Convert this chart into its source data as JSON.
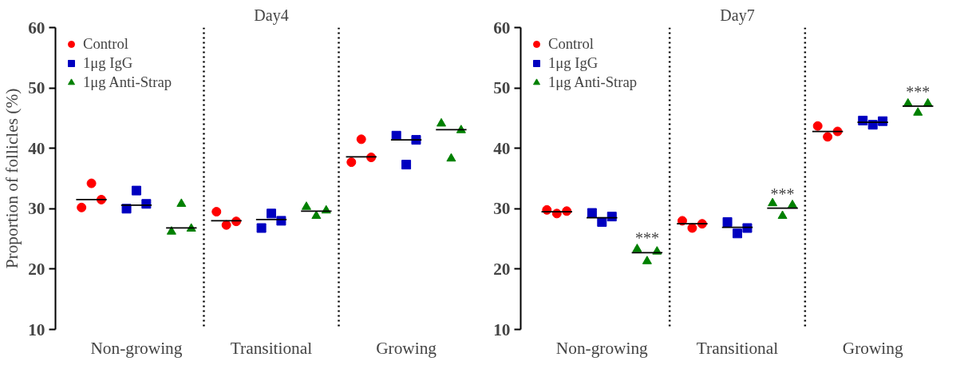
{
  "chart_data": [
    {
      "type": "scatter",
      "title": "Day4",
      "ylabel": "Proportion of follicles (%)",
      "ylim": [
        10,
        60
      ],
      "yticks": [
        10,
        20,
        30,
        40,
        50,
        60
      ],
      "categories": [
        null,
        "Non-growing",
        null,
        null,
        "Transitional",
        null,
        null,
        "Growing",
        null
      ],
      "grid": false,
      "legend": "top left",
      "series": [
        {
          "name": "Control",
          "color": "#ff0000",
          "marker": "circle",
          "values": [
            30.2,
            null,
            null,
            29.5,
            null,
            null,
            37.7,
            null,
            null
          ]
        },
        {
          "color": "#ff0000",
          "marker": "circle",
          "values": [
            34.2,
            null,
            null,
            27.3,
            null,
            null,
            41.5,
            null,
            null
          ]
        },
        {
          "color": "#ff0000",
          "marker": "circle",
          "values": [
            31.5,
            null,
            null,
            27.9,
            null,
            null,
            38.5,
            null,
            null
          ]
        },
        {
          "name": "1μg IgG",
          "color": "#0000c0",
          "marker": "square",
          "values": [
            null,
            30.0,
            null,
            null,
            26.8,
            null,
            null,
            42.1,
            null
          ]
        },
        {
          "color": "#0000c0",
          "marker": "square",
          "values": [
            null,
            33.0,
            null,
            null,
            29.2,
            null,
            null,
            37.3,
            null
          ]
        },
        {
          "color": "#0000c0",
          "marker": "square",
          "values": [
            null,
            30.8,
            null,
            null,
            28.0,
            null,
            null,
            41.4,
            null
          ]
        },
        {
          "name": "1μg Anti-Strap",
          "color": "#008000",
          "marker": "triangle",
          "values": [
            null,
            null,
            26.2,
            null,
            null,
            30.3,
            null,
            null,
            44.1
          ]
        },
        {
          "color": "#008000",
          "marker": "triangle",
          "values": [
            null,
            null,
            30.8,
            null,
            null,
            28.8,
            null,
            null,
            38.3
          ]
        },
        {
          "color": "#008000",
          "marker": "triangle",
          "values": [
            null,
            null,
            26.7,
            null,
            null,
            29.7,
            null,
            null,
            43.0
          ]
        },
        {
          "type": "box",
          "color": "#000000",
          "boxes": [
            {
              "low": 31.5,
              "q1": 31.5,
              "median": 31.5,
              "q3": 31.5,
              "high": 31.5
            },
            {
              "low": 30.6,
              "q1": 30.6,
              "median": 30.6,
              "q3": 30.6,
              "high": 30.6
            },
            {
              "low": 26.8,
              "q1": 26.8,
              "median": 26.8,
              "q3": 26.8,
              "high": 26.8
            },
            {
              "low": 28.0,
              "q1": 28.0,
              "median": 28.0,
              "q3": 28.0,
              "high": 28.0
            },
            {
              "low": 28.2,
              "q1": 28.2,
              "median": 28.2,
              "q3": 28.2,
              "high": 28.2
            },
            {
              "low": 29.6,
              "q1": 29.6,
              "median": 29.6,
              "q3": 29.6,
              "high": 29.6
            },
            {
              "low": 38.6,
              "q1": 38.6,
              "median": 38.6,
              "q3": 38.6,
              "high": 38.6
            },
            {
              "low": 41.4,
              "q1": 41.4,
              "median": 41.4,
              "q3": 41.4,
              "high": 41.4
            },
            {
              "low": 43.1,
              "q1": 43.1,
              "median": 43.1,
              "q3": 43.1,
              "high": 43.1
            }
          ]
        }
      ]
    },
    {
      "type": "scatter",
      "title": "Day7",
      "ylim": [
        10,
        60
      ],
      "yticks": [
        10,
        20,
        30,
        40,
        50,
        60
      ],
      "categories": [
        null,
        "Non-growing",
        null,
        null,
        "Transitional",
        null,
        null,
        "Growing",
        null
      ],
      "grid": false,
      "legend": "top left",
      "series": [
        {
          "name": "Control",
          "color": "#ff0000",
          "marker": "circle",
          "values": [
            29.8,
            null,
            null,
            28.0,
            null,
            null,
            43.7,
            null,
            null
          ]
        },
        {
          "color": "#ff0000",
          "marker": "circle",
          "values": [
            29.2,
            null,
            null,
            26.8,
            null,
            null,
            41.9,
            null,
            null
          ]
        },
        {
          "color": "#ff0000",
          "marker": "circle",
          "values": [
            29.6,
            null,
            null,
            27.5,
            null,
            null,
            42.8,
            null,
            null
          ]
        },
        {
          "name": "1μg IgG",
          "color": "#0000c0",
          "marker": "square",
          "values": [
            null,
            29.3,
            null,
            null,
            27.8,
            null,
            null,
            44.6,
            null
          ]
        },
        {
          "color": "#0000c0",
          "marker": "square",
          "values": [
            null,
            27.8,
            null,
            null,
            25.9,
            null,
            null,
            43.9,
            null
          ]
        },
        {
          "color": "#0000c0",
          "marker": "square",
          "values": [
            null,
            28.7,
            null,
            null,
            26.8,
            null,
            null,
            44.5,
            null
          ]
        },
        {
          "name": "1μg Anti-Strap",
          "color": "#008000",
          "marker": "triangle",
          "values": [
            null,
            null,
            23.3,
            null,
            null,
            30.9,
            null,
            null,
            47.4
          ]
        },
        {
          "color": "#008000",
          "marker": "triangle",
          "values": [
            null,
            null,
            21.3,
            null,
            null,
            28.8,
            null,
            null,
            45.9
          ]
        },
        {
          "color": "#008000",
          "marker": "triangle",
          "values": [
            null,
            null,
            22.9,
            null,
            null,
            30.6,
            null,
            null,
            47.4
          ]
        },
        {
          "type": "box",
          "color": "#000000",
          "boxes": [
            {
              "low": 29.5,
              "q1": 29.5,
              "median": 29.5,
              "q3": 29.5,
              "high": 29.5
            },
            {
              "low": 28.5,
              "q1": 28.5,
              "median": 28.5,
              "q3": 28.5,
              "high": 28.5
            },
            {
              "low": 22.7,
              "q1": 22.7,
              "median": 22.7,
              "q3": 22.7,
              "high": 22.7
            },
            {
              "low": 27.5,
              "q1": 27.5,
              "median": 27.5,
              "q3": 27.5,
              "high": 27.5
            },
            {
              "low": 26.9,
              "q1": 26.9,
              "median": 26.9,
              "q3": 26.9,
              "high": 26.9
            },
            {
              "low": 30.1,
              "q1": 30.1,
              "median": 30.1,
              "q3": 30.1,
              "high": 30.1
            },
            {
              "low": 42.8,
              "q1": 42.8,
              "median": 42.8,
              "q3": 42.8,
              "high": 42.8
            },
            {
              "low": 44.3,
              "q1": 44.3,
              "median": 44.3,
              "q3": 44.3,
              "high": 44.3
            },
            {
              "low": 47.0,
              "q1": 47.0,
              "median": 47.0,
              "q3": 47.0,
              "high": 47.0
            }
          ],
          "value_labels": [
            null,
            null,
            "***",
            null,
            null,
            "***",
            null,
            null,
            "***"
          ]
        }
      ]
    }
  ]
}
